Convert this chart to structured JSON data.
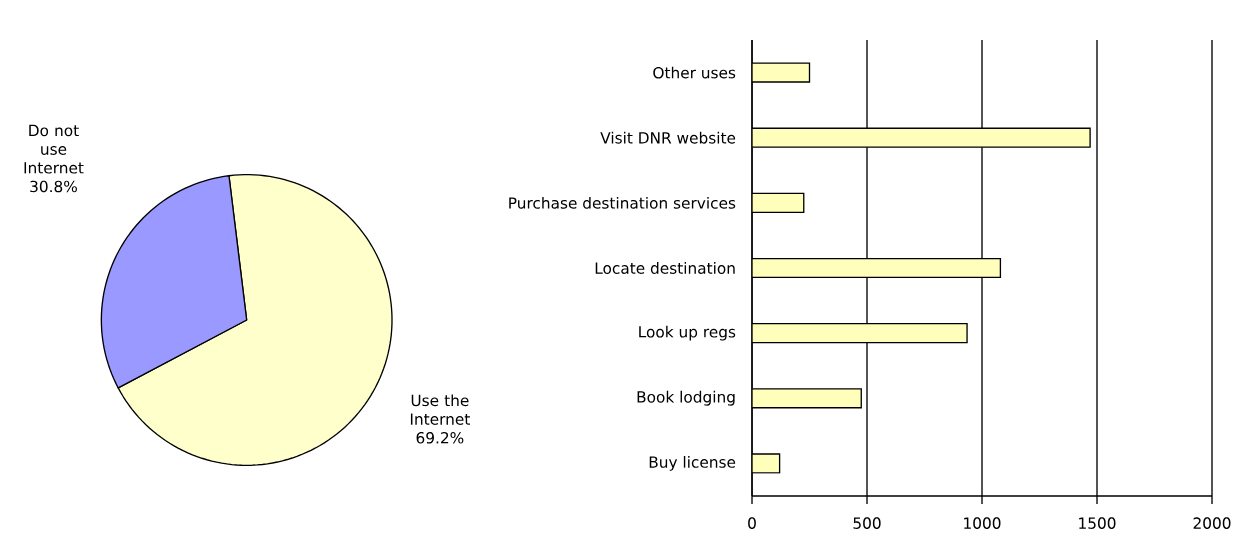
{
  "chart_data": [
    {
      "type": "pie",
      "categories": [
        "Use the Internet",
        "Do not use Internet"
      ],
      "values": [
        69.2,
        30.8
      ],
      "value_labels": [
        "69.2%",
        "30.8%"
      ],
      "colors": [
        "#ffffcc",
        "#9999ff"
      ]
    },
    {
      "type": "bar",
      "orientation": "horizontal",
      "categories": [
        "Other uses",
        "Visit DNR website",
        "Purchase destination services",
        "Locate destination",
        "Look up regs",
        "Book lodging",
        "Buy license"
      ],
      "values": [
        250,
        1470,
        225,
        1080,
        935,
        475,
        120
      ],
      "color": "#ffffbb",
      "xlim": [
        0,
        2000
      ],
      "xticks": [
        0,
        500,
        1000,
        1500,
        2000
      ],
      "grid": "x"
    }
  ]
}
